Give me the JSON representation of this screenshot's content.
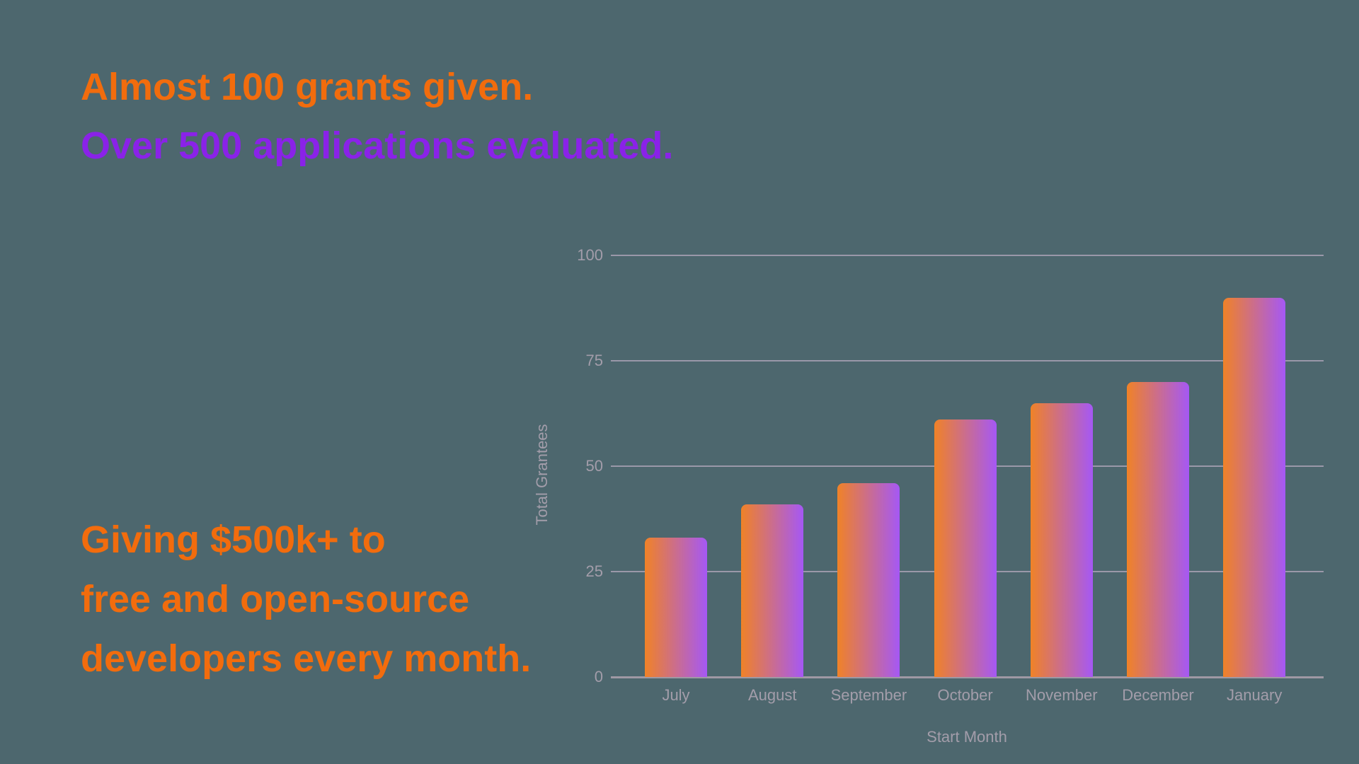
{
  "page": {
    "background_color": "#4d676e"
  },
  "headline": {
    "line1": "Almost 100 grants given.",
    "line1_color": "#f26c0d",
    "line2": "Over 500 applications evaluated.",
    "line2_color": "#8a22e8"
  },
  "subheadline": {
    "color": "#f26c0d",
    "lines": [
      "Giving $500k+ to",
      "free and open-source",
      "developers every month."
    ]
  },
  "chart_data": {
    "type": "bar",
    "categories": [
      "July",
      "August",
      "September",
      "October",
      "November",
      "December",
      "January"
    ],
    "values": [
      33,
      41,
      46,
      61,
      65,
      70,
      90
    ],
    "title": "",
    "xlabel": "Start Month",
    "ylabel": "Total Grantees",
    "ylim": [
      0,
      100
    ],
    "yticks": [
      0,
      25,
      50,
      75,
      100
    ],
    "grid": true,
    "legend": false,
    "bar_gradient_left": "#f08227",
    "bar_gradient_right": "#a558f5",
    "axis_text_color": "#a39daa",
    "gridline_color": "#a8a1b4",
    "baseline_color": "#9f99a4"
  }
}
